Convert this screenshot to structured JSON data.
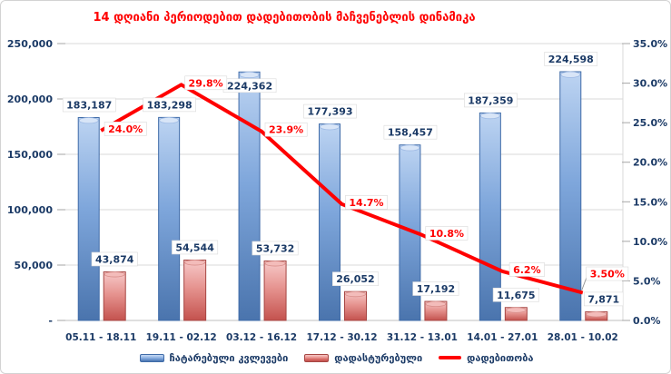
{
  "chart_data": {
    "type": "combo-bar-line",
    "title": "14 დღიანი პერიოდებით დადებითობის მაჩვენებლის დინამიკა",
    "title_color": "#ff0000",
    "categories": [
      "05.11 - 18.11",
      "19.11 - 02.12",
      "03.12 - 16.12",
      "17.12 - 30.12",
      "31.12 - 13.01",
      "14.01 - 27.01",
      "28.01 - 10.02"
    ],
    "series": [
      {
        "name": "ჩატარებული კვლევები",
        "type": "bar",
        "axis": "left",
        "values": [
          183187,
          183298,
          224362,
          177393,
          158457,
          187359,
          224598
        ],
        "labels": [
          "183,187",
          "183,298",
          "224,362",
          "177,393",
          "158,457",
          "187,359",
          "224,598"
        ],
        "color_top": "#bdd4f2",
        "color_bottom": "#4a74ad"
      },
      {
        "name": "დადასტურებული",
        "type": "bar",
        "axis": "left",
        "values": [
          43874,
          54544,
          53732,
          26052,
          17192,
          11675,
          7871
        ],
        "labels": [
          "43,874",
          "54,544",
          "53,732",
          "26,052",
          "17,192",
          "11,675",
          "7,871"
        ],
        "color_top": "#f7caca",
        "color_bottom": "#c4524e"
      },
      {
        "name": "დადებითობა",
        "type": "line",
        "axis": "right",
        "values": [
          24.0,
          29.8,
          23.9,
          14.7,
          10.8,
          6.2,
          3.5
        ],
        "labels": [
          "24.0%",
          "29.8%",
          "23.9%",
          "14.7%",
          "10.8%",
          "6.2%",
          "3.50%"
        ],
        "color": "#ff0000"
      }
    ],
    "left_axis": {
      "min": 0,
      "max": 250000,
      "step": 50000,
      "tick_labels": [
        "250,000",
        "200,000",
        "150,000",
        "100,000",
        "50,000",
        "-"
      ]
    },
    "right_axis": {
      "min": 0,
      "max": 35,
      "step": 5,
      "tick_labels": [
        "35.0%",
        "30.0%",
        "25.0%",
        "20.0%",
        "15.0%",
        "10.0%",
        "5.0%",
        "0.0%"
      ]
    },
    "grid": true,
    "legend_position": "bottom"
  },
  "colors": {
    "axis_text": "#1b3a66",
    "data_label_text": "#1b3a66",
    "line_label_text": "#ff0000",
    "gridline": "#d9d9d9",
    "axis_line": "#bfbfbf",
    "tick": "#a6a6a6",
    "label_box_fill": "#ffffff",
    "label_box_border": "#d9d9d9"
  }
}
